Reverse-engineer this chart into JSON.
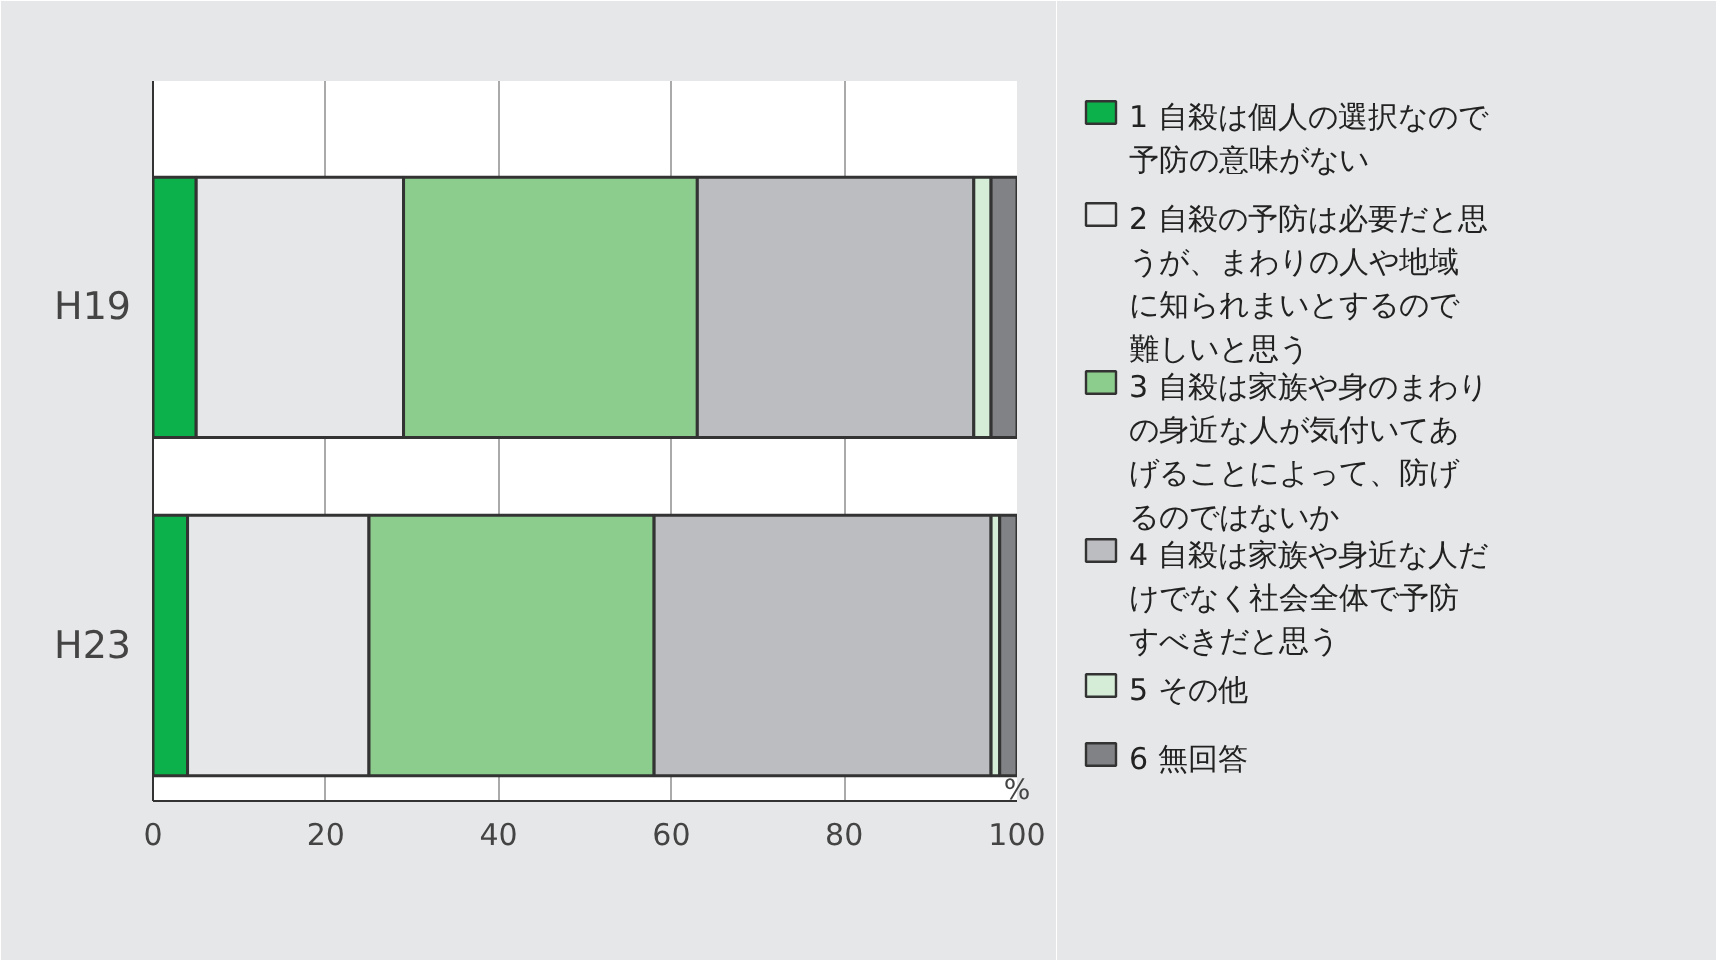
{
  "chart_data": {
    "type": "bar",
    "orientation": "horizontal",
    "stacked": true,
    "xlabel": "%",
    "categories": [
      "H19",
      "H23"
    ],
    "xlim": [
      0,
      100
    ],
    "xticks": [
      0,
      20,
      40,
      60,
      80,
      100
    ],
    "grid": "x",
    "legend": "right",
    "series": [
      {
        "name": "1 自殺は個人の選択なので予防の意味がない",
        "color": "#0db14b",
        "values": [
          5,
          4
        ]
      },
      {
        "name": "2 自殺の予防は必要だと思うが、まわりの人や地域に知られまいとするので難しいと思う",
        "color": "#e6e7e9",
        "values": [
          24,
          21
        ]
      },
      {
        "name": "3 自殺は家族や身のまわりの身近な人が気付いてあげることによって、防げるのではないか",
        "color": "#8ccc8c",
        "values": [
          34,
          33
        ]
      },
      {
        "name": "4 自殺は家族や身近な人だけでなく社会全体で予防すべきだと思う",
        "color": "#bcbdc1",
        "values": [
          32,
          39
        ]
      },
      {
        "name": "5 その他",
        "color": "#d5ecd6",
        "values": [
          2,
          1
        ]
      },
      {
        "name": "6 無回答",
        "color": "#808285",
        "values": [
          3,
          2
        ]
      }
    ]
  }
}
